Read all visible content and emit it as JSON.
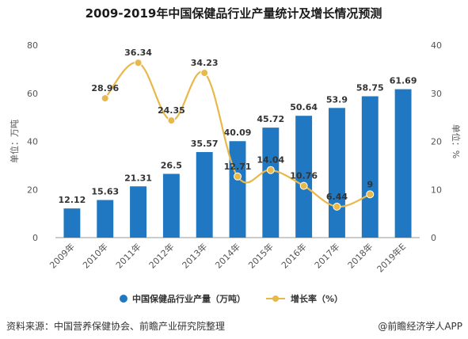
{
  "chart_data": {
    "type": "bar",
    "title": "2009-2019年中国保健品行业产量统计及增长情况预测",
    "categories": [
      "2009年",
      "2010年",
      "2011年",
      "2012年",
      "2013年",
      "2014年",
      "2015年",
      "2016年",
      "2017年",
      "2018年",
      "2019年E"
    ],
    "series": [
      {
        "name": "中国保健品行业产量（万吨）",
        "type": "bar",
        "axis": "left",
        "values": [
          12.12,
          15.63,
          21.31,
          26.5,
          35.57,
          40.09,
          45.72,
          50.64,
          53.9,
          58.75,
          61.69
        ]
      },
      {
        "name": "增长率（%）",
        "type": "line",
        "axis": "right",
        "values": [
          null,
          28.96,
          36.34,
          24.35,
          34.23,
          12.71,
          14.04,
          10.76,
          6.44,
          9,
          null
        ]
      }
    ],
    "ylabel": "单位：万吨",
    "y2label": "单位：%",
    "ylim": [
      0,
      80
    ],
    "y2lim": [
      0,
      40
    ],
    "yticks": [
      "0",
      "20",
      "40",
      "60",
      "80"
    ],
    "y2ticks": [
      "0",
      "10",
      "20",
      "30",
      "40"
    ],
    "legend_position": "bottom",
    "grid": false
  },
  "colors": {
    "bar": "#1f78c1",
    "line": "#e8b84a",
    "text": "#333333"
  },
  "footer": {
    "source": "资料来源：中国营养保健协会、前瞻产业研究院整理",
    "brand": "@前瞻经济学人APP"
  }
}
